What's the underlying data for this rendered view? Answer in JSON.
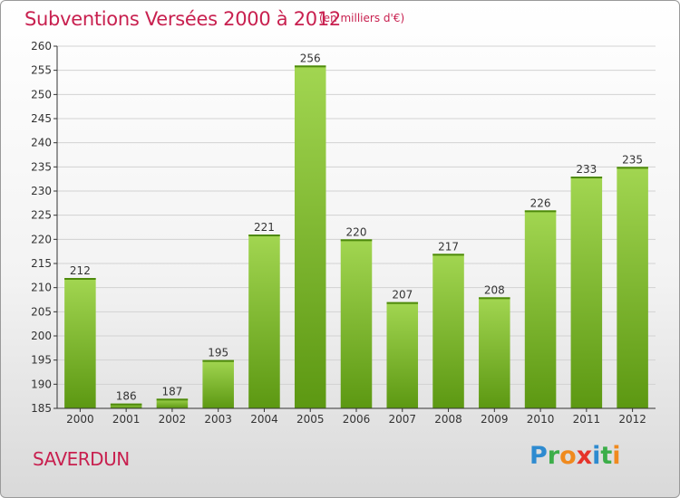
{
  "header": {
    "title": "Subventions Versées 2000 à 2012",
    "subtitle": "(en milliers d'€)"
  },
  "footer": {
    "commune": "SAVERDUN",
    "logo_letters": [
      "P",
      "r",
      "o",
      "x",
      "i",
      "t",
      "i"
    ],
    "logo_colors": [
      "#2e8bd0",
      "#3cae49",
      "#f08a1e",
      "#e6332a",
      "#2e8bd0",
      "#3cae49",
      "#f08a1e"
    ]
  },
  "colors": {
    "title": "#c8204f",
    "bar_light": "#9fd44f",
    "bar_dark": "#5e9a12",
    "grid": "#d2d2d2",
    "axis": "#333333"
  },
  "chart_data": {
    "type": "bar",
    "title": "Subventions Versées 2000 à 2012",
    "subtitle": "(en milliers d'€)",
    "categories": [
      "2000",
      "2001",
      "2002",
      "2003",
      "2004",
      "2005",
      "2006",
      "2007",
      "2008",
      "2009",
      "2010",
      "2011",
      "2012"
    ],
    "values": [
      212,
      186,
      187,
      195,
      221,
      256,
      220,
      207,
      217,
      208,
      226,
      233,
      235
    ],
    "ylim": [
      185,
      260
    ],
    "yticks": [
      185,
      190,
      195,
      200,
      205,
      210,
      215,
      220,
      225,
      230,
      235,
      240,
      245,
      250,
      255,
      260
    ],
    "grid": true,
    "data_labels": true,
    "xlabel": "",
    "ylabel": ""
  }
}
